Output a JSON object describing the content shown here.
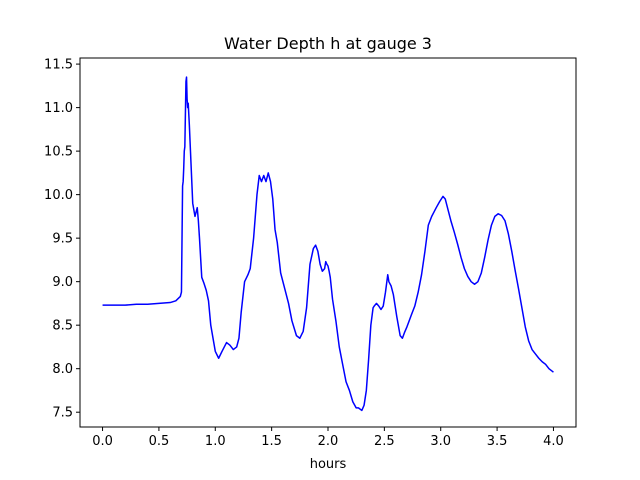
{
  "chart_data": {
    "type": "line",
    "title": "Water Depth h at gauge 3",
    "xlabel": "hours",
    "ylabel": "",
    "xlim": [
      -0.2,
      4.2
    ],
    "ylim": [
      7.33,
      11.57
    ],
    "xticks": [
      "0.0",
      "0.5",
      "1.0",
      "1.5",
      "2.0",
      "2.5",
      "3.0",
      "3.5",
      "4.0"
    ],
    "yticks": [
      "7.5",
      "8.0",
      "8.5",
      "9.0",
      "9.5",
      "10.0",
      "10.5",
      "11.0",
      "11.5"
    ],
    "grid": false,
    "series": [
      {
        "color": "#0000ff",
        "x": [
          0.0,
          0.1,
          0.2,
          0.3,
          0.4,
          0.5,
          0.6,
          0.65,
          0.69,
          0.7,
          0.71,
          0.715,
          0.72,
          0.725,
          0.73,
          0.74,
          0.745,
          0.75,
          0.755,
          0.76,
          0.77,
          0.78,
          0.8,
          0.82,
          0.84,
          0.85,
          0.86,
          0.88,
          0.9,
          0.92,
          0.94,
          0.96,
          0.98,
          1.0,
          1.03,
          1.06,
          1.08,
          1.1,
          1.13,
          1.16,
          1.19,
          1.21,
          1.23,
          1.26,
          1.29,
          1.31,
          1.34,
          1.37,
          1.39,
          1.41,
          1.43,
          1.45,
          1.47,
          1.49,
          1.51,
          1.53,
          1.55,
          1.58,
          1.62,
          1.65,
          1.68,
          1.72,
          1.75,
          1.78,
          1.81,
          1.84,
          1.87,
          1.89,
          1.91,
          1.93,
          1.95,
          1.97,
          1.98,
          1.99,
          2.0,
          2.01,
          2.02,
          2.04,
          2.07,
          2.1,
          2.13,
          2.16,
          2.19,
          2.22,
          2.25,
          2.27,
          2.3,
          2.32,
          2.34,
          2.36,
          2.38,
          2.4,
          2.41,
          2.43,
          2.45,
          2.47,
          2.49,
          2.51,
          2.53,
          2.54,
          2.56,
          2.58,
          2.61,
          2.64,
          2.66,
          2.68,
          2.7,
          2.72,
          2.74,
          2.77,
          2.8,
          2.83,
          2.86,
          2.89,
          2.92,
          2.94,
          2.96,
          2.99,
          3.02,
          3.04,
          3.06,
          3.09,
          3.12,
          3.15,
          3.18,
          3.21,
          3.24,
          3.27,
          3.3,
          3.33,
          3.36,
          3.39,
          3.42,
          3.45,
          3.48,
          3.51,
          3.54,
          3.57,
          3.6,
          3.63,
          3.66,
          3.69,
          3.72,
          3.75,
          3.78,
          3.81,
          3.84,
          3.87,
          3.9,
          3.93,
          3.96,
          4.0
        ],
        "values": [
          8.73,
          8.73,
          8.73,
          8.74,
          8.74,
          8.75,
          8.76,
          8.78,
          8.83,
          8.88,
          10.1,
          10.15,
          10.3,
          10.5,
          10.55,
          11.3,
          11.35,
          11.1,
          11.0,
          11.05,
          10.8,
          10.5,
          9.9,
          9.75,
          9.85,
          9.7,
          9.5,
          9.05,
          8.98,
          8.9,
          8.78,
          8.5,
          8.35,
          8.2,
          8.12,
          8.2,
          8.25,
          8.3,
          8.27,
          8.22,
          8.25,
          8.35,
          8.65,
          9.0,
          9.08,
          9.15,
          9.5,
          10.0,
          10.22,
          10.15,
          10.22,
          10.15,
          10.25,
          10.15,
          9.95,
          9.6,
          9.45,
          9.1,
          8.9,
          8.75,
          8.55,
          8.38,
          8.35,
          8.43,
          8.7,
          9.2,
          9.38,
          9.42,
          9.35,
          9.2,
          9.12,
          9.15,
          9.23,
          9.2,
          9.18,
          9.12,
          9.05,
          8.8,
          8.55,
          8.25,
          8.05,
          7.85,
          7.75,
          7.62,
          7.55,
          7.55,
          7.52,
          7.58,
          7.75,
          8.1,
          8.5,
          8.7,
          8.72,
          8.75,
          8.72,
          8.68,
          8.72,
          8.88,
          9.08,
          9.0,
          8.95,
          8.85,
          8.6,
          8.38,
          8.35,
          8.42,
          8.48,
          8.55,
          8.62,
          8.72,
          8.88,
          9.08,
          9.35,
          9.65,
          9.75,
          9.8,
          9.85,
          9.92,
          9.98,
          9.95,
          9.85,
          9.7,
          9.57,
          9.43,
          9.28,
          9.15,
          9.06,
          9.0,
          8.97,
          9.0,
          9.1,
          9.28,
          9.48,
          9.65,
          9.75,
          9.78,
          9.76,
          9.7,
          9.55,
          9.35,
          9.13,
          8.92,
          8.7,
          8.48,
          8.32,
          8.22,
          8.17,
          8.12,
          8.08,
          8.05,
          8.0,
          7.96
        ]
      }
    ]
  }
}
